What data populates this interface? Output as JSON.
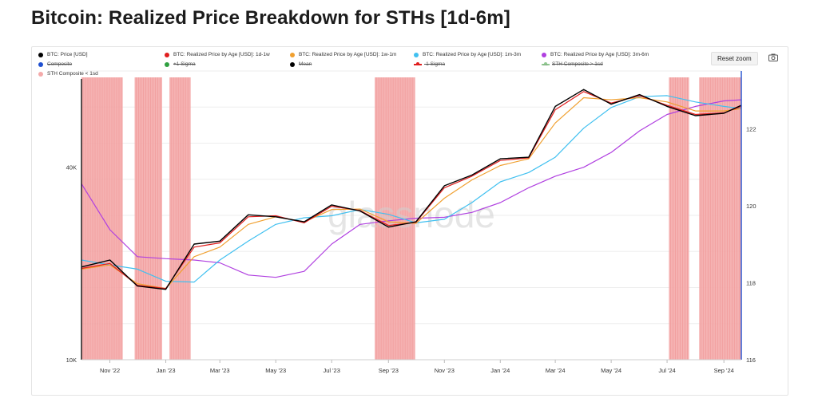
{
  "page": {
    "title": "Bitcoin: Realized Price Breakdown for STHs [1d-6m]"
  },
  "toolbar": {
    "reset_zoom": "Reset zoom",
    "camera_icon": "camera-icon"
  },
  "legend": {
    "items": [
      {
        "label": "BTC: Price [USD]",
        "color": "#000000",
        "style": "dot",
        "struck": false
      },
      {
        "label": "BTC: Realized Price by Age [USD]: 1d-1w",
        "color": "#e01e1e",
        "style": "dot",
        "struck": false
      },
      {
        "label": "BTC: Realized Price by Age [USD]: 1w-1m",
        "color": "#f0a030",
        "style": "dot",
        "struck": false
      },
      {
        "label": "BTC: Realized Price by Age [USD]: 1m-3m",
        "color": "#40c0f0",
        "style": "dot",
        "struck": false
      },
      {
        "label": "BTC: Realized Price by Age [USD]: 3m-6m",
        "color": "#b040e0",
        "style": "dot",
        "struck": false
      },
      {
        "label": "Composite",
        "color": "#2050d0",
        "style": "dot",
        "struck": true
      },
      {
        "label": "+1 Sigma",
        "color": "#30a040",
        "style": "dot",
        "struck": true
      },
      {
        "label": "Mean",
        "color": "#000000",
        "style": "dot",
        "struck": true
      },
      {
        "label": "-1 Sigma",
        "color": "#e01e1e",
        "style": "line",
        "struck": true
      },
      {
        "label": "STH Composite > 1sd",
        "color": "#90c890",
        "style": "line",
        "struck": true
      },
      {
        "label": "STH Composite < 1sd",
        "color": "#f4aaaa",
        "style": "dot",
        "struck": false
      }
    ],
    "more": "..."
  },
  "watermark": "glassnode",
  "chart_data": {
    "type": "line",
    "title": "Bitcoin: Realized Price Breakdown for STHs [1d-6m]",
    "x_ticks": [
      "Nov '22",
      "Jan '23",
      "Mar '23",
      "May '23",
      "Jul '23",
      "Sep '23",
      "Nov '23",
      "Jan '24",
      "Mar '24",
      "May '24",
      "Jul '24",
      "Sep '24"
    ],
    "x_range": [
      "2022-10-01",
      "2024-09-20"
    ],
    "y_left": {
      "scale": "log",
      "ticks": [
        "10K",
        "40K"
      ],
      "tick_values": [
        10000,
        40000
      ],
      "range": [
        10000,
        80000
      ]
    },
    "y_right": {
      "scale": "linear",
      "ticks": [
        "116",
        "118",
        "120",
        "122"
      ],
      "range": [
        116,
        123.5
      ],
      "color": "#2050d0"
    },
    "grid": true,
    "dates": [
      "2022-10-01",
      "2022-11-01",
      "2022-12-01",
      "2023-01-01",
      "2023-02-01",
      "2023-03-01",
      "2023-04-01",
      "2023-05-01",
      "2023-06-01",
      "2023-07-01",
      "2023-08-01",
      "2023-09-01",
      "2023-10-01",
      "2023-11-01",
      "2023-12-01",
      "2024-01-01",
      "2024-02-01",
      "2024-03-01",
      "2024-04-01",
      "2024-05-01",
      "2024-06-01",
      "2024-07-01",
      "2024-08-01",
      "2024-09-01",
      "2024-09-20"
    ],
    "series": [
      {
        "name": "BTC: Price [USD]",
        "color": "#000000",
        "values": [
          19500,
          20500,
          17000,
          16600,
          23000,
          23500,
          28400,
          28000,
          27000,
          30500,
          29200,
          26000,
          27000,
          35000,
          37800,
          42500,
          43000,
          62000,
          70000,
          63000,
          67500,
          62000,
          58000,
          59000,
          62500
        ]
      },
      {
        "name": "BTC: Realized Price by Age [USD]: 1d-1w",
        "color": "#e01e1e",
        "values": [
          19300,
          20000,
          17100,
          16700,
          22500,
          23200,
          28000,
          28200,
          26800,
          30200,
          29300,
          26300,
          26900,
          34500,
          37500,
          42000,
          42800,
          60500,
          69000,
          63500,
          67000,
          62500,
          58500,
          59200,
          62000
        ]
      },
      {
        "name": "BTC: Realized Price by Age [USD]: 1w-1m",
        "color": "#f0a030",
        "values": [
          19200,
          19800,
          17300,
          16700,
          21000,
          22500,
          26500,
          28000,
          27000,
          29500,
          29600,
          27000,
          26700,
          32000,
          36500,
          40500,
          42500,
          55000,
          66000,
          65000,
          66000,
          64000,
          60000,
          60000,
          61000
        ]
      },
      {
        "name": "BTC: Realized Price by Age [USD]: 1m-3m",
        "color": "#40c0f0",
        "values": [
          20500,
          19800,
          19200,
          17600,
          17500,
          20500,
          23500,
          26500,
          27800,
          28200,
          29500,
          28500,
          26800,
          27500,
          31000,
          36000,
          38500,
          43000,
          53000,
          61500,
          66500,
          67000,
          64000,
          62000,
          61000
        ]
      },
      {
        "name": "BTC: Realized Price by Age [USD]: 3m-6m",
        "color": "#b040e0",
        "values": [
          35500,
          25500,
          21000,
          20700,
          20500,
          20100,
          18400,
          18100,
          18900,
          23000,
          26500,
          27200,
          27700,
          27900,
          28900,
          31000,
          34500,
          37500,
          40000,
          44500,
          52000,
          58500,
          62000,
          64500,
          65000
        ]
      }
    ],
    "highlight_periods": {
      "name": "STH Composite < 1sd",
      "color": "#f4aaaa",
      "ranges": [
        [
          "2022-10-01",
          "2022-11-15"
        ],
        [
          "2022-11-28",
          "2022-12-28"
        ],
        [
          "2023-01-05",
          "2023-01-28"
        ],
        [
          "2023-08-17",
          "2023-09-30"
        ],
        [
          "2024-07-03",
          "2024-07-25"
        ],
        [
          "2024-08-05",
          "2024-09-20"
        ]
      ]
    }
  }
}
